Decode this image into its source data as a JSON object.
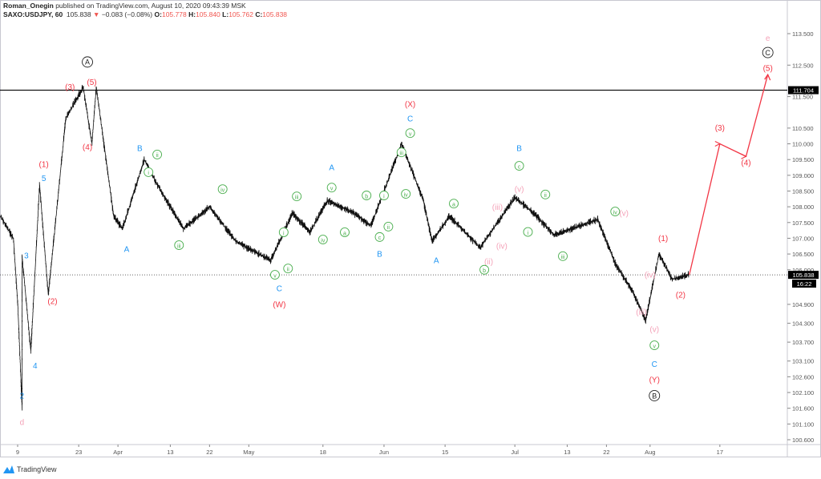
{
  "header": {
    "author": "Roman_Onegin",
    "published": "published on TradingView.com, August 10, 2020 09:43:39 MSK",
    "symbol": "SAXO:USDJPY, 60",
    "last": "105.838",
    "change": "−0.083 (−0.08%)",
    "o_label": "O:",
    "o": "105.778",
    "h_label": "H:",
    "h": "105.840",
    "l_label": "L:",
    "l": "105.762",
    "c_label": "C:",
    "c": "105.838"
  },
  "footer": {
    "brand": "TradingView",
    "icon": "tradingview-logo-icon"
  },
  "colors": {
    "red": "#f23645",
    "blue": "#2196f3",
    "green": "#4caf50",
    "pink": "#f4a3b9",
    "black": "#222222"
  },
  "chart_data": {
    "type": "line",
    "title": "",
    "ylim": [
      100.3,
      113.8
    ],
    "y_ticks": [
      "113.500",
      "112.500",
      "111.500",
      "110.500",
      "110.000",
      "109.500",
      "109.000",
      "108.500",
      "108.000",
      "107.500",
      "107.000",
      "106.500",
      "106.000",
      "104.900",
      "104.300",
      "103.700",
      "103.100",
      "102.600",
      "102.100",
      "101.600",
      "101.100",
      "100.600"
    ],
    "x_ticks": [
      {
        "date": "2020-03-09",
        "label": "9"
      },
      {
        "date": "2020-03-23",
        "label": "23"
      },
      {
        "date": "2020-04-01",
        "label": "Apr"
      },
      {
        "date": "2020-04-13",
        "label": "13"
      },
      {
        "date": "2020-04-22",
        "label": "22"
      },
      {
        "date": "2020-05-01",
        "label": "May"
      },
      {
        "date": "2020-05-18",
        "label": "18"
      },
      {
        "date": "2020-06-01",
        "label": "Jun"
      },
      {
        "date": "2020-06-15",
        "label": "15"
      },
      {
        "date": "2020-07-01",
        "label": "Jul"
      },
      {
        "date": "2020-07-13",
        "label": "13"
      },
      {
        "date": "2020-07-22",
        "label": "22"
      },
      {
        "date": "2020-08-01",
        "label": "Aug"
      },
      {
        "date": "2020-08-17",
        "label": "17"
      }
    ],
    "horizontal_line": {
      "price": 111.704,
      "label": "111.704"
    },
    "last_price": {
      "price": 105.838,
      "label": "105.838",
      "countdown": "16:22"
    },
    "price": [
      [
        "2020-03-05",
        107.7
      ],
      [
        "2020-03-08",
        107.0
      ],
      [
        "2020-03-09",
        104.9
      ],
      [
        "2020-03-10",
        101.6
      ],
      [
        "2020-03-10",
        106.4
      ],
      [
        "2020-03-12",
        103.4
      ],
      [
        "2020-03-14",
        108.7
      ],
      [
        "2020-03-16",
        105.2
      ],
      [
        "2020-03-20",
        110.8
      ],
      [
        "2020-03-24",
        111.8
      ],
      [
        "2020-03-26",
        110.0
      ],
      [
        "2020-03-27",
        111.8
      ],
      [
        "2020-03-31",
        107.7
      ],
      [
        "2020-04-02",
        107.3
      ],
      [
        "2020-04-07",
        109.5
      ],
      [
        "2020-04-10",
        108.7
      ],
      [
        "2020-04-16",
        107.3
      ],
      [
        "2020-04-22",
        108.0
      ],
      [
        "2020-04-28",
        106.9
      ],
      [
        "2020-05-06",
        106.3
      ],
      [
        "2020-05-11",
        107.8
      ],
      [
        "2020-05-15",
        107.2
      ],
      [
        "2020-05-19",
        108.2
      ],
      [
        "2020-05-25",
        107.8
      ],
      [
        "2020-05-29",
        107.4
      ],
      [
        "2020-06-05",
        110.0
      ],
      [
        "2020-06-10",
        108.2
      ],
      [
        "2020-06-12",
        106.9
      ],
      [
        "2020-06-16",
        107.7
      ],
      [
        "2020-06-23",
        106.7
      ],
      [
        "2020-07-01",
        108.3
      ],
      [
        "2020-07-06",
        107.7
      ],
      [
        "2020-07-10",
        107.1
      ],
      [
        "2020-07-20",
        107.6
      ],
      [
        "2020-07-24",
        106.2
      ],
      [
        "2020-07-28",
        105.3
      ],
      [
        "2020-07-31",
        104.4
      ],
      [
        "2020-08-03",
        106.5
      ],
      [
        "2020-08-06",
        105.7
      ],
      [
        "2020-08-10",
        105.84
      ]
    ],
    "projection": [
      [
        "2020-08-10",
        105.84
      ],
      [
        "2020-08-17",
        110.0
      ],
      [
        "2020-08-23",
        109.6
      ],
      [
        "2020-08-28",
        112.2
      ]
    ],
    "labels": [
      {
        "t": "A",
        "c": "black",
        "circ": true,
        "d": "2020-03-25",
        "p": 112.6
      },
      {
        "t": "B",
        "c": "black",
        "circ": true,
        "d": "2020-08-02",
        "p": 102.0
      },
      {
        "t": "C",
        "c": "black",
        "circ": true,
        "d": "2020-08-28",
        "p": 112.9
      },
      {
        "t": "e",
        "c": "pink",
        "d": "2020-08-28",
        "p": 113.35
      },
      {
        "t": "(3)",
        "c": "red",
        "d": "2020-03-21",
        "p": 111.8
      },
      {
        "t": "(5)",
        "c": "red",
        "d": "2020-03-26",
        "p": 111.95
      },
      {
        "t": "(4)",
        "c": "red",
        "d": "2020-03-25",
        "p": 109.9
      },
      {
        "t": "(1)",
        "c": "red",
        "d": "2020-03-15",
        "p": 109.35
      },
      {
        "t": "(2)",
        "c": "red",
        "d": "2020-03-17",
        "p": 105.0
      },
      {
        "t": "(W)",
        "c": "red",
        "d": "2020-05-08",
        "p": 104.9
      },
      {
        "t": "(X)",
        "c": "red",
        "d": "2020-06-07",
        "p": 111.25
      },
      {
        "t": "(Y)",
        "c": "red",
        "d": "2020-08-02",
        "p": 102.5
      },
      {
        "t": "(1)",
        "c": "red",
        "d": "2020-08-04",
        "p": 107.0
      },
      {
        "t": "(2)",
        "c": "red",
        "d": "2020-08-08",
        "p": 105.2
      },
      {
        "t": "(3)",
        "c": "red",
        "d": "2020-08-17",
        "p": 110.5
      },
      {
        "t": "(4)",
        "c": "red",
        "d": "2020-08-23",
        "p": 109.4
      },
      {
        "t": "(5)",
        "c": "red",
        "d": "2020-08-28",
        "p": 112.4
      },
      {
        "t": "5",
        "c": "blue",
        "d": "2020-03-15",
        "p": 108.9
      },
      {
        "t": "3",
        "c": "blue",
        "d": "2020-03-11",
        "p": 106.45
      },
      {
        "t": "4",
        "c": "blue",
        "d": "2020-03-13",
        "p": 102.95
      },
      {
        "t": "2",
        "c": "blue",
        "d": "2020-03-10",
        "p": 102.0
      },
      {
        "t": "A",
        "c": "blue",
        "d": "2020-04-03",
        "p": 106.65
      },
      {
        "t": "B",
        "c": "blue",
        "d": "2020-04-06",
        "p": 109.85
      },
      {
        "t": "A",
        "c": "blue",
        "d": "2020-05-20",
        "p": 109.25
      },
      {
        "t": "B",
        "c": "blue",
        "d": "2020-05-31",
        "p": 106.5
      },
      {
        "t": "C",
        "c": "blue",
        "d": "2020-06-07",
        "p": 110.8
      },
      {
        "t": "A",
        "c": "blue",
        "d": "2020-06-13",
        "p": 106.3
      },
      {
        "t": "B",
        "c": "blue",
        "d": "2020-07-02",
        "p": 109.85
      },
      {
        "t": "C",
        "c": "blue",
        "d": "2020-05-08",
        "p": 105.4
      },
      {
        "t": "C",
        "c": "blue",
        "d": "2020-08-02",
        "p": 103.0
      },
      {
        "t": "d",
        "c": "pink",
        "d": "2020-03-10",
        "p": 101.15
      },
      {
        "t": "(iii)",
        "c": "pink",
        "d": "2020-06-27",
        "p": 107.98
      },
      {
        "t": "(iv)",
        "c": "pink",
        "d": "2020-06-28",
        "p": 106.75
      },
      {
        "t": "(ii)",
        "c": "pink",
        "d": "2020-06-25",
        "p": 106.25
      },
      {
        "t": "(v)",
        "c": "pink",
        "d": "2020-07-02",
        "p": 108.56
      },
      {
        "t": "(iv)",
        "c": "pink",
        "d": "2020-08-01",
        "p": 105.84
      },
      {
        "t": "(iii)",
        "c": "pink",
        "d": "2020-07-30",
        "p": 104.65
      },
      {
        "t": "(v)",
        "c": "pink",
        "d": "2020-08-02",
        "p": 104.1
      },
      {
        "t": "(v)",
        "c": "pink",
        "d": "2020-07-26",
        "p": 107.8
      },
      {
        "t": "ii",
        "c": "green",
        "circ": true,
        "d": "2020-04-10",
        "p": 109.66
      },
      {
        "t": "i",
        "c": "green",
        "circ": true,
        "d": "2020-04-08",
        "p": 109.1
      },
      {
        "t": "iii",
        "c": "green",
        "circ": true,
        "d": "2020-04-15",
        "p": 106.78
      },
      {
        "t": "iv",
        "c": "green",
        "circ": true,
        "d": "2020-04-25",
        "p": 108.56
      },
      {
        "t": "i",
        "c": "green",
        "circ": true,
        "d": "2020-05-09",
        "p": 107.19
      },
      {
        "t": "v",
        "c": "green",
        "circ": true,
        "d": "2020-05-07",
        "p": 105.84
      },
      {
        "t": "ii",
        "c": "green",
        "circ": true,
        "d": "2020-05-10",
        "p": 106.04
      },
      {
        "t": "iii",
        "c": "green",
        "circ": true,
        "d": "2020-05-12",
        "p": 108.33
      },
      {
        "t": "iv",
        "c": "green",
        "circ": true,
        "d": "2020-05-18",
        "p": 106.96
      },
      {
        "t": "v",
        "c": "green",
        "circ": true,
        "d": "2020-05-20",
        "p": 108.61
      },
      {
        "t": "a",
        "c": "green",
        "circ": true,
        "d": "2020-05-23",
        "p": 107.19
      },
      {
        "t": "b",
        "c": "green",
        "circ": true,
        "d": "2020-05-28",
        "p": 108.36
      },
      {
        "t": "i",
        "c": "green",
        "circ": true,
        "d": "2020-06-01",
        "p": 108.36
      },
      {
        "t": "ii",
        "c": "green",
        "circ": true,
        "d": "2020-06-02",
        "p": 107.37
      },
      {
        "t": "c",
        "c": "green",
        "circ": true,
        "d": "2020-05-31",
        "p": 107.04
      },
      {
        "t": "iii",
        "c": "green",
        "circ": true,
        "d": "2020-06-05",
        "p": 109.73
      },
      {
        "t": "iv",
        "c": "green",
        "circ": true,
        "d": "2020-06-06",
        "p": 108.41
      },
      {
        "t": "v",
        "c": "green",
        "circ": true,
        "d": "2020-06-07",
        "p": 110.34
      },
      {
        "t": "a",
        "c": "green",
        "circ": true,
        "d": "2020-06-17",
        "p": 108.1
      },
      {
        "t": "c",
        "c": "green",
        "circ": true,
        "d": "2020-07-02",
        "p": 109.3
      },
      {
        "t": "ii",
        "c": "green",
        "circ": true,
        "d": "2020-07-08",
        "p": 108.39
      },
      {
        "t": "i",
        "c": "green",
        "circ": true,
        "d": "2020-07-04",
        "p": 107.2
      },
      {
        "t": "iii",
        "c": "green",
        "circ": true,
        "d": "2020-07-12",
        "p": 106.43
      },
      {
        "t": "b",
        "c": "green",
        "circ": true,
        "d": "2020-06-24",
        "p": 106.0
      },
      {
        "t": "iv",
        "c": "green",
        "circ": true,
        "d": "2020-07-24",
        "p": 107.85
      },
      {
        "t": "v",
        "c": "green",
        "circ": true,
        "d": "2020-08-02",
        "p": 103.6
      }
    ]
  }
}
